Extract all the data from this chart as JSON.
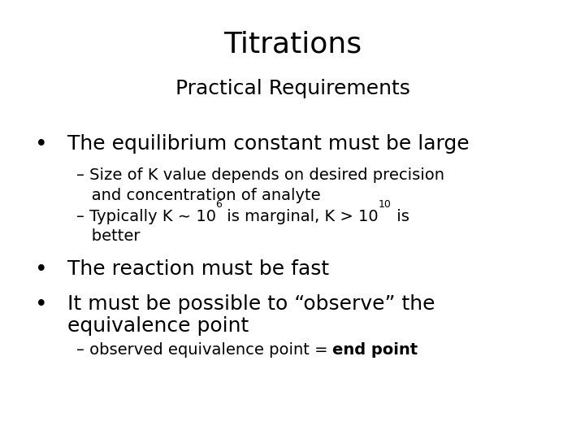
{
  "title": "Titrations",
  "subtitle": "Practical Requirements",
  "background_color": "#ffffff",
  "text_color": "#000000",
  "title_fontsize": 26,
  "subtitle_fontsize": 18,
  "body_fontsize": 18,
  "sub_fontsize": 14,
  "sup_fontsize": 9,
  "bullet1": "The equilibrium constant must be large",
  "sub1a_line1": "– Size of K value depends on desired precision",
  "sub1a_line2": "   and concentration of analyte",
  "sub1b_prefix": "– Typically K ∼ 10",
  "sub1b_exp1": "6",
  "sub1b_mid": " is marginal, K > 10",
  "sub1b_exp2": "10",
  "sub1b_end": " is",
  "sub1b_line2": "   better",
  "bullet2": "The reaction must be fast",
  "bullet3_line1": "It must be possible to “observe” the",
  "bullet3_line2": "equivalence point",
  "sub3_normal": "– observed equivalence point = ",
  "sub3_bold": "end point",
  "font_family": "DejaVu Sans"
}
